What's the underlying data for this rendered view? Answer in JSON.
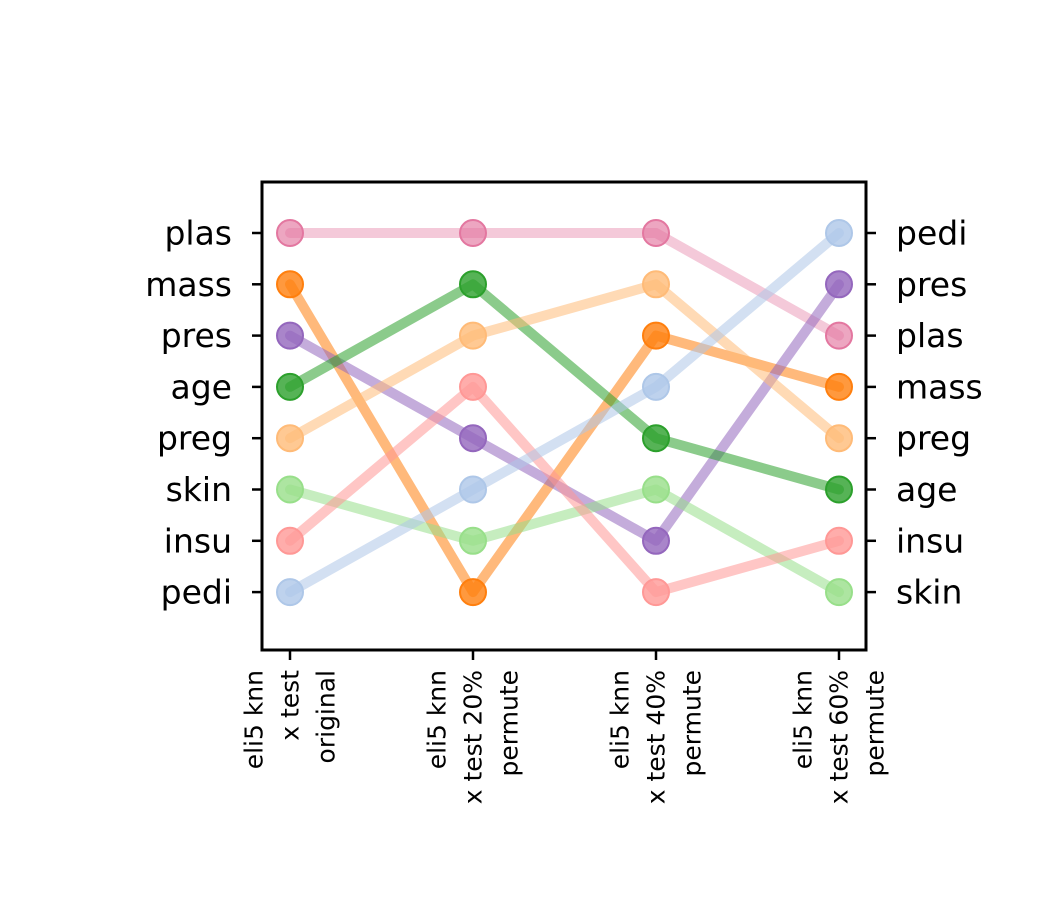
{
  "chart_data": {
    "type": "line",
    "categories": [
      [
        "eli5 knn",
        "x test",
        "original"
      ],
      [
        "eli5 knn",
        "x test 20%",
        "permute"
      ],
      [
        "eli5 knn",
        "x test 40%",
        "permute"
      ],
      [
        "eli5 knn",
        "x test 60%",
        "permute"
      ]
    ],
    "left_rank_labels": [
      "plas",
      "mass",
      "pres",
      "age",
      "preg",
      "skin",
      "insu",
      "pedi"
    ],
    "right_rank_labels": [
      "pedi",
      "pres",
      "plas",
      "mass",
      "preg",
      "age",
      "insu",
      "skin"
    ],
    "ylim": [
      -1,
      8
    ],
    "grid": false,
    "series": [
      {
        "name": "plas",
        "color": "#e377a0",
        "alpha": 0.4,
        "values": [
          0,
          0,
          0,
          2
        ]
      },
      {
        "name": "mass",
        "color": "#ff7f0e",
        "alpha": 0.55,
        "values": [
          1,
          7,
          2,
          3
        ]
      },
      {
        "name": "pres",
        "color": "#9467bd",
        "alpha": 0.55,
        "values": [
          2,
          4,
          6,
          1
        ]
      },
      {
        "name": "age",
        "color": "#2ca02c",
        "alpha": 0.55,
        "values": [
          3,
          1,
          4,
          5
        ]
      },
      {
        "name": "preg",
        "color": "#ffbb78",
        "alpha": 0.55,
        "values": [
          4,
          2,
          1,
          4
        ]
      },
      {
        "name": "skin",
        "color": "#98df8a",
        "alpha": 0.55,
        "values": [
          5,
          6,
          5,
          7
        ]
      },
      {
        "name": "insu",
        "color": "#ff9896",
        "alpha": 0.55,
        "values": [
          6,
          3,
          7,
          6
        ]
      },
      {
        "name": "pedi",
        "color": "#aec7e8",
        "alpha": 0.55,
        "values": [
          7,
          5,
          3,
          0
        ]
      }
    ]
  }
}
